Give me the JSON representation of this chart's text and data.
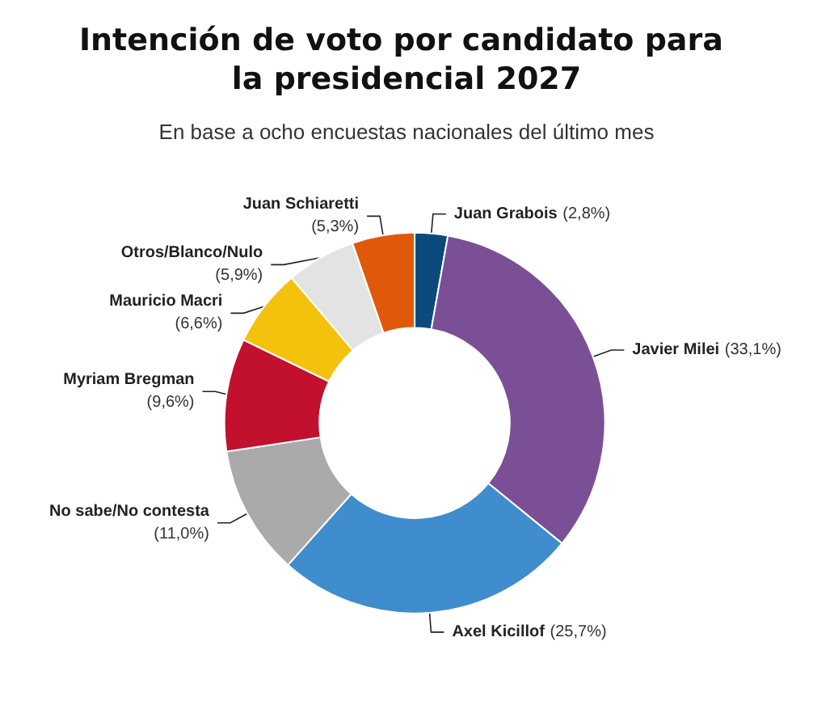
{
  "chart_data": {
    "type": "donut",
    "title": "Intención de voto por candidato para la presidencial 2027",
    "subtitle": "En base a ocho encuestas nacionales del último mes",
    "categories": [
      "Juan Grabois",
      "Javier Milei",
      "Axel Kicillof",
      "No sabe/No contesta",
      "Myriam Bregman",
      "Mauricio Macri",
      "Otros/Blanco/Nulo",
      "Juan Schiaretti"
    ],
    "values": [
      2.8,
      33.1,
      25.7,
      11.0,
      9.6,
      6.6,
      5.9,
      5.3
    ],
    "value_labels": [
      "(2,8%)",
      "(33,1%)",
      "(25,7%)",
      "(11,0%)",
      "(9,6%)",
      "(6,6%)",
      "(5,9%)",
      "(5,3%)"
    ],
    "colors": [
      "#0d4a7c",
      "#7b4f96",
      "#3f8dcc",
      "#aaaaaa",
      "#c2102f",
      "#f4c20d",
      "#e3e3e3",
      "#e0590b"
    ],
    "legend": false
  }
}
